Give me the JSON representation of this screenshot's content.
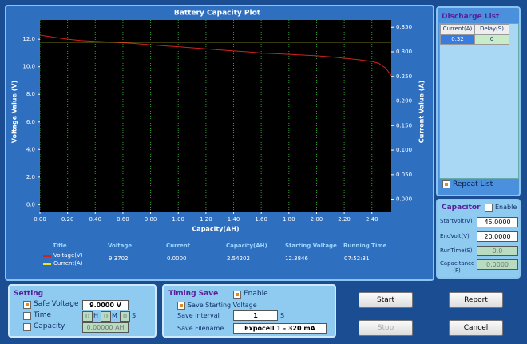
{
  "chart_data": {
    "type": "line",
    "title": "Battery Capacity Plot",
    "x_label": "Capacity(AH)",
    "y_label": "Voltage Value (V)",
    "y2_label": "Current Value (A)",
    "x": [
      0,
      0.1,
      0.2,
      0.3,
      0.4,
      0.5,
      0.6,
      0.7,
      0.8,
      0.9,
      1.0,
      1.1,
      1.2,
      1.3,
      1.4,
      1.5,
      1.6,
      1.7,
      1.8,
      1.9,
      2.0,
      2.1,
      2.2,
      2.3,
      2.4,
      2.45,
      2.5,
      2.54
    ],
    "series": [
      {
        "name": "Voltage(V)",
        "color": "#d42020",
        "values": [
          12.3,
          12.15,
          12.0,
          11.9,
          11.85,
          11.8,
          11.75,
          11.68,
          11.6,
          11.52,
          11.45,
          11.37,
          11.3,
          11.22,
          11.15,
          11.08,
          11.0,
          10.95,
          10.9,
          10.85,
          10.8,
          10.72,
          10.62,
          10.52,
          10.38,
          10.25,
          9.9,
          9.37
        ]
      },
      {
        "name": "Current(A)",
        "color": "#e8e820",
        "axis": "y2",
        "values": [
          0.32,
          0.32,
          0.32,
          0.32,
          0.32,
          0.32,
          0.32,
          0.32,
          0.32,
          0.32,
          0.32,
          0.32,
          0.32,
          0.32,
          0.32,
          0.32,
          0.32,
          0.32,
          0.32,
          0.32,
          0.32,
          0.32,
          0.32,
          0.32,
          0.32,
          0.32,
          0.32,
          0.32
        ]
      }
    ],
    "xlim": [
      0,
      2.54
    ],
    "xticks": [
      {
        "value": 0,
        "label": "0.00"
      },
      {
        "value": 0.2,
        "label": "0.20"
      },
      {
        "value": 0.4,
        "label": "0.40"
      },
      {
        "value": 0.6,
        "label": "0.60"
      },
      {
        "value": 0.8,
        "label": "0.80"
      },
      {
        "value": 1,
        "label": "1.00"
      },
      {
        "value": 1.2,
        "label": "1.20"
      },
      {
        "value": 1.4,
        "label": "1.40"
      },
      {
        "value": 1.6,
        "label": "1.60"
      },
      {
        "value": 1.8,
        "label": "1.80"
      },
      {
        "value": 2,
        "label": "2.00"
      },
      {
        "value": 2.2,
        "label": "2.20"
      },
      {
        "value": 2.4,
        "label": "2.40"
      }
    ],
    "ylim": [
      -0.5,
      13.4
    ],
    "yticks": [
      {
        "value": 0,
        "label": "0.0"
      },
      {
        "value": 2,
        "label": "2.0"
      },
      {
        "value": 4,
        "label": "4.0"
      },
      {
        "value": 6,
        "label": "6.0"
      },
      {
        "value": 8,
        "label": "8.0"
      },
      {
        "value": 10,
        "label": "10.0"
      },
      {
        "value": 12,
        "label": "12.0"
      }
    ],
    "y2lim": [
      -0.025,
      0.365
    ],
    "y2ticks": [
      {
        "value": 0,
        "label": "0.000"
      },
      {
        "value": 0.05,
        "label": "0.050"
      },
      {
        "value": 0.1,
        "label": "0.100"
      },
      {
        "value": 0.15,
        "label": "0.150"
      },
      {
        "value": 0.2,
        "label": "0.200"
      },
      {
        "value": 0.25,
        "label": "0.250"
      },
      {
        "value": 0.3,
        "label": "0.300"
      },
      {
        "value": 0.35,
        "label": "0.350"
      }
    ],
    "grid": true
  },
  "stats": {
    "headers": [
      "Title",
      "Voltage",
      "Current",
      "Capacity(AH)",
      "Starting Voltage",
      "Running Time"
    ],
    "values": [
      "9.3702",
      "0.0000",
      "2.54202",
      "12.3846",
      "07:52:31"
    ]
  },
  "discharge_list": {
    "title": "Discharge List",
    "columns": [
      "Current(A)",
      "Delay(S)"
    ],
    "rows": [
      [
        "0.32",
        "0"
      ]
    ],
    "repeat_list": "Repeat List"
  },
  "capacitor": {
    "title": "Capacitor",
    "enable": "Enable",
    "fields": [
      {
        "label": "StartVolt(V)",
        "value": "45.0000"
      },
      {
        "label": "EndVolt(V)",
        "value": "20.0000"
      },
      {
        "label": "RunTime(S)",
        "value": "0.0"
      },
      {
        "label": "Capacitance (F)",
        "value": "0.0000"
      }
    ]
  },
  "setting": {
    "title": "Setting",
    "safe_voltage": {
      "label": "Safe Voltage",
      "value": "9.0000 V"
    },
    "time": {
      "label": "Time",
      "hours": "0",
      "h": "H",
      "minutes": "0",
      "m": "M",
      "seconds": "0",
      "s": "S"
    },
    "capacity": {
      "label": "Capacity",
      "value": "0.00000 AH"
    }
  },
  "timing_save": {
    "title": "Timing Save",
    "enable": "Enable",
    "save_starting_voltage": "Save Starting Voltage",
    "save_interval": {
      "label": "Save Interval",
      "value": "1",
      "unit": "S"
    },
    "save_filename": {
      "label": "Save Filename",
      "value": "Expocell 1 - 320 mA"
    }
  },
  "buttons": {
    "start": "Start",
    "report": "Report",
    "stop": "Stop",
    "cancel": "Cancel"
  }
}
